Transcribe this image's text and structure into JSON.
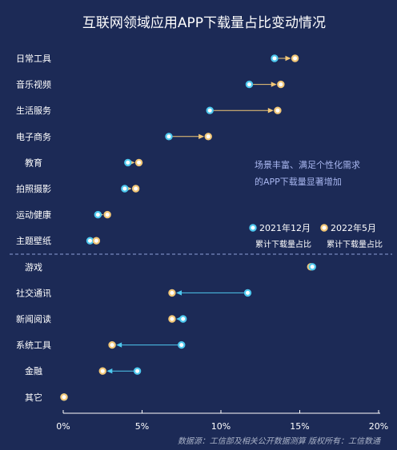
{
  "chart_data": {
    "type": "dumbbell",
    "title": "互联网领域应用APP下载量占比变动情况",
    "x_ticks": [
      "0%",
      "5%",
      "10%",
      "15%",
      "20%"
    ],
    "xlim": [
      0,
      20
    ],
    "unit": "%",
    "series": [
      {
        "name": "2021年12月",
        "sublabel": "累计下载量占比",
        "color": "#4ec9ef"
      },
      {
        "name": "2022年5月",
        "sublabel": "累计下载量占比",
        "color": "#f2c777"
      }
    ],
    "categories": [
      "日常工具",
      "音乐视频",
      "生活服务",
      "电子商务",
      "教育",
      "拍照摄影",
      "运动健康",
      "主题壁纸",
      "游戏",
      "社交通讯",
      "新闻阅读",
      "系统工具",
      "金融",
      "其它"
    ],
    "values_2021_12": [
      13.4,
      11.8,
      9.3,
      6.7,
      4.1,
      3.9,
      2.2,
      1.7,
      15.8,
      11.7,
      7.6,
      7.5,
      4.7,
      0.05
    ],
    "values_2022_05": [
      14.7,
      13.8,
      13.6,
      9.2,
      4.8,
      4.6,
      2.8,
      2.1,
      15.7,
      6.9,
      6.9,
      3.1,
      2.5,
      0.05
    ],
    "divider_after_index": 7,
    "increase_color": "#f2c777",
    "decrease_color": "#4ec9ef",
    "annotation": [
      "场景丰富、满足个性化需求",
      "的APP下载量显著增加"
    ],
    "footer": "数据源：工信部及相关公开数据测算    版权所有：工信数通"
  }
}
